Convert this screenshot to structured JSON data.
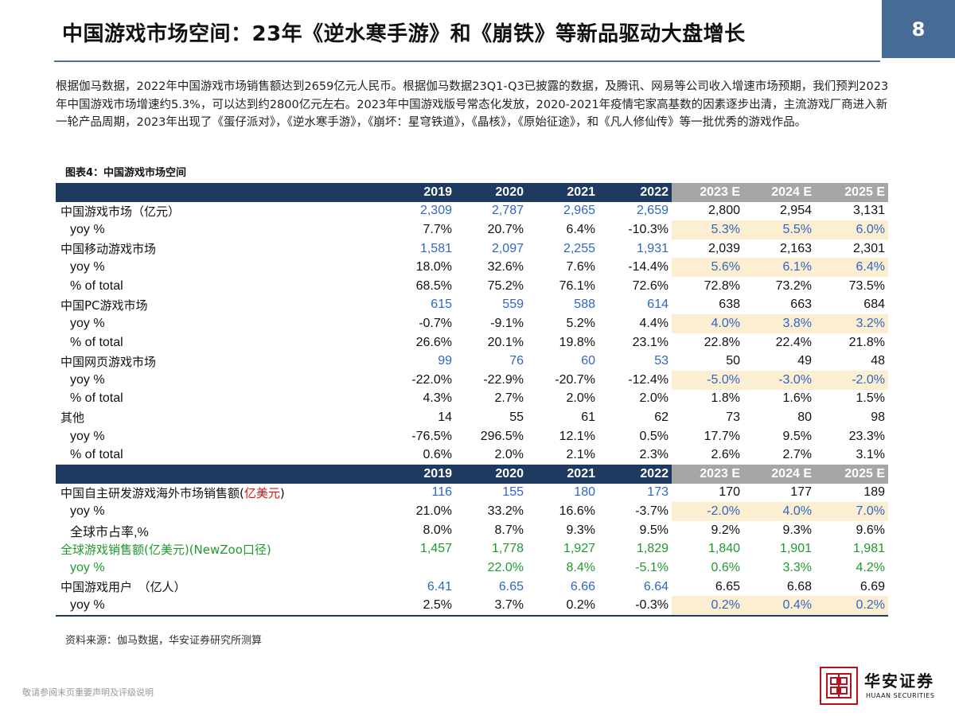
{
  "header": {
    "title": "中国游戏市场空间：23年《逆水寒手游》和《崩铁》等新品驱动大盘增长",
    "page_number": "8"
  },
  "intro": "根据伽马数据，2022年中国游戏市场销售额达到2659亿元人民币。根据伽马数据23Q1-Q3已披露的数据，及腾讯、网易等公司收入增速市场预期，我们预判2023年中国游戏市场增速约5.3%，可以达到约2800亿元左右。2023年中国游戏版号常态化发放，2020-2021年疫情宅家高基数的因素逐步出清，主流游戏厂商进入新一轮产品周期，2023年出现了《蛋仔派对》，《逆水寒手游》，《崩坏：星穹铁道》，《晶核》，《原始征途》，和《凡人修仙传》等一批优秀的游戏作品。",
  "table_title": "图表4：中国游戏市场空间",
  "years": [
    "2019",
    "2020",
    "2021",
    "2022",
    "2023 E",
    "2024 E",
    "2025 E"
  ],
  "section1": [
    {
      "label": "中国游戏市场（亿元）",
      "sub": false,
      "values": [
        "2,309",
        "2,787",
        "2,965",
        "2,659",
        "2,800",
        "2,954",
        "3,131"
      ]
    },
    {
      "label": "yoy %",
      "sub": true,
      "values": [
        "7.7%",
        "20.7%",
        "6.4%",
        "-10.3%",
        "5.3%",
        "5.5%",
        "6.0%"
      ]
    },
    {
      "label": "中国移动游戏市场",
      "sub": false,
      "values": [
        "1,581",
        "2,097",
        "2,255",
        "1,931",
        "2,039",
        "2,163",
        "2,301"
      ]
    },
    {
      "label": "yoy %",
      "sub": true,
      "values": [
        "18.0%",
        "32.6%",
        "7.6%",
        "-14.4%",
        "5.6%",
        "6.1%",
        "6.4%"
      ]
    },
    {
      "label": "% of total",
      "sub": true,
      "values": [
        "68.5%",
        "75.2%",
        "76.1%",
        "72.6%",
        "72.8%",
        "73.2%",
        "73.5%"
      ]
    },
    {
      "label": "中国PC游戏市场",
      "sub": false,
      "values": [
        "615",
        "559",
        "588",
        "614",
        "638",
        "663",
        "684"
      ]
    },
    {
      "label": "yoy %",
      "sub": true,
      "values": [
        "-0.7%",
        "-9.1%",
        "5.2%",
        "4.4%",
        "4.0%",
        "3.8%",
        "3.2%"
      ]
    },
    {
      "label": "% of total",
      "sub": true,
      "values": [
        "26.6%",
        "20.1%",
        "19.8%",
        "23.1%",
        "22.8%",
        "22.4%",
        "21.8%"
      ]
    },
    {
      "label": "中国网页游戏市场",
      "sub": false,
      "values": [
        "99",
        "76",
        "60",
        "53",
        "50",
        "49",
        "48"
      ]
    },
    {
      "label": "yoy %",
      "sub": true,
      "values": [
        "-22.0%",
        "-22.9%",
        "-20.7%",
        "-12.4%",
        "-5.0%",
        "-3.0%",
        "-2.0%"
      ]
    },
    {
      "label": "% of total",
      "sub": true,
      "values": [
        "4.3%",
        "2.7%",
        "2.0%",
        "2.0%",
        "1.8%",
        "1.6%",
        "1.5%"
      ]
    },
    {
      "label": "其他",
      "sub": false,
      "values": [
        "14",
        "55",
        "61",
        "62",
        "73",
        "80",
        "98"
      ]
    },
    {
      "label": "yoy %",
      "sub": true,
      "values": [
        "-76.5%",
        "296.5%",
        "12.1%",
        "0.5%",
        "17.7%",
        "9.5%",
        "23.3%"
      ]
    },
    {
      "label": "% of total",
      "sub": true,
      "values": [
        "0.6%",
        "2.0%",
        "2.1%",
        "2.3%",
        "2.6%",
        "2.7%",
        "3.1%"
      ]
    }
  ],
  "section2": [
    {
      "label": "中国自主研发游戏海外市场销售额(",
      "label_red": "亿美元",
      "label_tail": ")",
      "sub": false,
      "values": [
        "116",
        "155",
        "180",
        "173",
        "170",
        "177",
        "189"
      ]
    },
    {
      "label": "yoy %",
      "sub": true,
      "values": [
        "21.0%",
        "33.2%",
        "16.6%",
        "-3.7%",
        "-2.0%",
        "4.0%",
        "7.0%"
      ]
    },
    {
      "label": "全球市占率,%",
      "sub": true,
      "values": [
        "8.0%",
        "8.7%",
        "9.3%",
        "9.5%",
        "9.2%",
        "9.3%",
        "9.6%"
      ]
    },
    {
      "label": "全球游戏销售额(亿美元)(NewZoo口径)",
      "sub": false,
      "values": [
        "1,457",
        "1,778",
        "1,927",
        "1,829",
        "1,840",
        "1,901",
        "1,981"
      ]
    },
    {
      "label": "yoy %",
      "sub": true,
      "values": [
        "",
        "22.0%",
        "8.4%",
        "-5.1%",
        "0.6%",
        "3.3%",
        "4.2%"
      ]
    },
    {
      "label": "中国游戏用户　（亿人）",
      "sub": false,
      "values": [
        "6.41",
        "6.65",
        "6.66",
        "6.64",
        "6.65",
        "6.68",
        "6.69"
      ]
    },
    {
      "label": "yoy %",
      "sub": true,
      "values": [
        "2.5%",
        "3.7%",
        "0.2%",
        "-0.3%",
        "0.2%",
        "0.4%",
        "0.2%"
      ]
    }
  ],
  "source": "资料来源：伽马数据，华安证券研究所测算",
  "disclaimer": "敬请参阅末页重要声明及评级说明",
  "logo": {
    "cn": "华安证券",
    "en": "HUAAN SECURITIES"
  },
  "colors": {
    "navy": "#1f3a60",
    "blue_value": "#2e66c7",
    "green": "#1f9a2e",
    "estimate_shade": "#fcefd1",
    "brand_red": "#b5121b"
  }
}
